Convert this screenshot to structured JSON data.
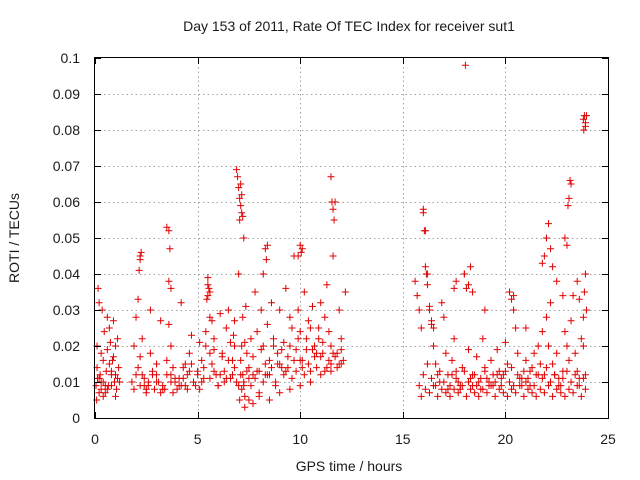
{
  "chart_data": {
    "type": "scatter",
    "title": "Day 153 of 2011, Rate Of TEC Index for receiver sut1",
    "xlabel": "GPS time / hours",
    "ylabel": "ROTI / TECUs",
    "xlim": [
      0,
      25
    ],
    "ylim": [
      0,
      0.1
    ],
    "xticks": [
      0,
      5,
      10,
      15,
      20,
      25
    ],
    "yticks": [
      0,
      0.01,
      0.02,
      0.03,
      0.04,
      0.05,
      0.06,
      0.07,
      0.08,
      0.09,
      0.1
    ],
    "xtick_labels": [
      "0",
      "5",
      "10",
      "15",
      "20",
      "25"
    ],
    "ytick_labels": [
      "0",
      "0.01",
      "0.02",
      "0.03",
      "0.04",
      "0.05",
      "0.06",
      "0.07",
      "0.08",
      "0.09",
      "0.1"
    ],
    "grid": true,
    "marker": "plus",
    "color": "#e00000",
    "series": [
      {
        "x": [
          0.05,
          0.1,
          0.15,
          0.2,
          0.25,
          0.3,
          0.35,
          0.4,
          0.5,
          0.6,
          0.7,
          0.8,
          0.9,
          1.0,
          1.1,
          1.2,
          0.08,
          0.12,
          0.3,
          0.45,
          0.55,
          0.65,
          0.75,
          0.85,
          0.95,
          1.05,
          1.15,
          0.2,
          0.4,
          0.6,
          0.8,
          1.0,
          0.1,
          0.3,
          0.5,
          0.7,
          0.9,
          0.2,
          0.4,
          0.6,
          0.8,
          1.0,
          1.1,
          1.8,
          1.9,
          2.0,
          2.1,
          2.2,
          2.3,
          2.4,
          2.5,
          2.6,
          2.7,
          2.8,
          2.9,
          3.0,
          3.1,
          3.2,
          3.3,
          3.4,
          3.5,
          3.6,
          3.7,
          3.8,
          3.9,
          4.0,
          4.1,
          4.2,
          4.3,
          4.4,
          4.5,
          4.6,
          4.7,
          4.8,
          4.9,
          5.0,
          5.1,
          5.2,
          5.3,
          5.4,
          5.5,
          5.6,
          5.7,
          5.8,
          5.9,
          6.0,
          6.1,
          6.2,
          6.3,
          6.4,
          6.5,
          6.6,
          6.7,
          6.8,
          6.9,
          2.1,
          2.2,
          2.3,
          2.5,
          2.7,
          3.0,
          3.2,
          3.5,
          3.6,
          3.7,
          3.8,
          4.1,
          4.3,
          4.5,
          4.7,
          5.0,
          5.2,
          5.4,
          5.5,
          5.6,
          5.7,
          5.8,
          6.0,
          6.2,
          6.4,
          6.6,
          6.8,
          1.9,
          2.0,
          2.2,
          2.4,
          2.6,
          2.8,
          3.0,
          3.3,
          3.5,
          3.7,
          3.9,
          4.2,
          4.4,
          4.6,
          4.8,
          5.1,
          5.3,
          5.6,
          5.8,
          6.1,
          6.3,
          6.5,
          6.7,
          2.15,
          2.2,
          2.25,
          3.6,
          3.65,
          3.7,
          5.45,
          5.5,
          5.55,
          5.6,
          6.75,
          6.8,
          7.0,
          7.05,
          7.1,
          7.15,
          7.2,
          7.25,
          7.3,
          7.35,
          7.4,
          7.5,
          7.6,
          7.7,
          7.8,
          7.9,
          8.0,
          8.1,
          8.2,
          8.3,
          8.4,
          8.5,
          8.6,
          8.7,
          8.8,
          8.9,
          9.0,
          9.1,
          9.2,
          9.3,
          9.4,
          9.5,
          9.6,
          9.7,
          9.8,
          9.9,
          10.0,
          10.1,
          10.2,
          10.3,
          10.4,
          10.5,
          10.6,
          10.7,
          10.8,
          10.9,
          11.0,
          11.1,
          11.2,
          11.3,
          11.4,
          11.5,
          11.6,
          11.7,
          11.8,
          11.9,
          12.0,
          12.1,
          12.2,
          7.0,
          7.1,
          7.2,
          7.3,
          7.5,
          7.7,
          7.9,
          8.1,
          8.3,
          8.5,
          8.7,
          8.9,
          9.1,
          9.3,
          9.5,
          9.7,
          9.9,
          10.1,
          10.3,
          10.5,
          10.7,
          10.9,
          11.1,
          11.3,
          11.5,
          11.7,
          11.9,
          7.05,
          7.15,
          7.25,
          7.4,
          7.6,
          7.8,
          8.0,
          8.2,
          8.4,
          8.6,
          8.8,
          9.0,
          9.2,
          9.4,
          9.6,
          9.8,
          10.0,
          10.2,
          10.4,
          10.6,
          10.8,
          11.0,
          11.2,
          11.4,
          11.6,
          11.8,
          12.0,
          6.9,
          6.95,
          7.0,
          7.05,
          7.1,
          7.15,
          7.2,
          7.25,
          8.3,
          8.35,
          8.4,
          10.0,
          10.05,
          10.1,
          11.5,
          11.55,
          11.6,
          11.65,
          7.1,
          7.15,
          8.2,
          9.9,
          7.3,
          7.5,
          7.7,
          8.0,
          8.5,
          9.0,
          9.5,
          10.0,
          10.5,
          11.0,
          11.5,
          12.0,
          15.6,
          15.7,
          15.8,
          15.9,
          16.0,
          16.1,
          16.2,
          16.3,
          16.4,
          16.5,
          16.6,
          16.7,
          16.8,
          16.9,
          17.0,
          17.1,
          17.2,
          17.3,
          17.4,
          17.5,
          17.6,
          17.7,
          17.8,
          17.9,
          18.0,
          18.1,
          18.2,
          18.3,
          18.4,
          18.5,
          18.6,
          18.7,
          18.8,
          18.9,
          19.0,
          19.1,
          19.2,
          19.3,
          19.4,
          19.5,
          19.6,
          19.7,
          19.8,
          19.9,
          20.0,
          20.1,
          20.2,
          20.3,
          20.4,
          20.5,
          20.6,
          20.7,
          20.8,
          20.9,
          21.0,
          21.1,
          21.2,
          21.3,
          21.4,
          21.5,
          21.6,
          21.7,
          21.8,
          21.9,
          22.0,
          22.1,
          22.2,
          22.3,
          22.4,
          22.5,
          22.6,
          22.7,
          22.8,
          22.9,
          23.0,
          23.1,
          23.2,
          23.3,
          23.4,
          23.5,
          23.6,
          23.7,
          23.8,
          23.9,
          15.8,
          16.0,
          16.2,
          16.4,
          16.6,
          16.8,
          17.0,
          17.2,
          17.4,
          17.6,
          17.8,
          18.0,
          18.2,
          18.4,
          18.6,
          18.8,
          19.0,
          19.2,
          19.4,
          19.6,
          19.8,
          20.0,
          20.2,
          20.4,
          20.6,
          20.8,
          21.0,
          21.2,
          21.4,
          21.6,
          21.8,
          22.0,
          22.2,
          22.4,
          22.6,
          22.8,
          23.0,
          23.2,
          23.4,
          23.6,
          23.8,
          15.9,
          16.1,
          16.3,
          16.5,
          16.7,
          16.9,
          17.1,
          17.3,
          17.5,
          17.7,
          17.9,
          18.1,
          18.3,
          18.5,
          18.7,
          18.9,
          19.1,
          19.3,
          19.5,
          19.7,
          19.9,
          20.1,
          20.3,
          20.5,
          20.7,
          20.9,
          21.1,
          21.3,
          21.5,
          21.7,
          21.9,
          22.1,
          22.3,
          22.5,
          22.7,
          22.9,
          23.1,
          23.3,
          23.5,
          23.7,
          23.9,
          16.0,
          16.05,
          16.1,
          16.15,
          16.2,
          16.3,
          16.4,
          16.5,
          17.5,
          17.6,
          18.0,
          18.2,
          18.3,
          18.4,
          19.0,
          20.2,
          20.3,
          20.4,
          21.0,
          21.8,
          21.9,
          22.0,
          22.1,
          22.2,
          22.3,
          22.5,
          22.8,
          22.9,
          23.0,
          23.05,
          23.1,
          23.15,
          23.2,
          23.5,
          23.6,
          23.8,
          23.85,
          23.9,
          23.95,
          18.05,
          23.8,
          23.85,
          23.9,
          23.95,
          23.9,
          23.82
        ],
        "y": [
          0.009,
          0.02,
          0.036,
          0.032,
          0.012,
          0.008,
          0.03,
          0.01,
          0.007,
          0.028,
          0.015,
          0.009,
          0.027,
          0.012,
          0.022,
          0.01,
          0.005,
          0.011,
          0.018,
          0.024,
          0.013,
          0.009,
          0.021,
          0.016,
          0.01,
          0.008,
          0.014,
          0.007,
          0.006,
          0.019,
          0.012,
          0.006,
          0.014,
          0.01,
          0.009,
          0.025,
          0.017,
          0.011,
          0.016,
          0.008,
          0.013,
          0.02,
          0.011,
          0.01,
          0.02,
          0.028,
          0.033,
          0.045,
          0.012,
          0.009,
          0.007,
          0.01,
          0.03,
          0.012,
          0.008,
          0.015,
          0.01,
          0.027,
          0.009,
          0.008,
          0.053,
          0.038,
          0.012,
          0.007,
          0.01,
          0.008,
          0.011,
          0.032,
          0.014,
          0.009,
          0.012,
          0.018,
          0.023,
          0.01,
          0.009,
          0.013,
          0.021,
          0.016,
          0.011,
          0.024,
          0.039,
          0.028,
          0.015,
          0.022,
          0.012,
          0.009,
          0.029,
          0.018,
          0.013,
          0.025,
          0.03,
          0.011,
          0.016,
          0.02,
          0.01,
          0.014,
          0.009,
          0.022,
          0.008,
          0.018,
          0.012,
          0.007,
          0.016,
          0.026,
          0.01,
          0.014,
          0.009,
          0.011,
          0.008,
          0.015,
          0.012,
          0.01,
          0.02,
          0.034,
          0.018,
          0.027,
          0.013,
          0.009,
          0.017,
          0.011,
          0.021,
          0.014,
          0.008,
          0.012,
          0.017,
          0.011,
          0.009,
          0.013,
          0.01,
          0.008,
          0.012,
          0.02,
          0.011,
          0.009,
          0.015,
          0.013,
          0.01,
          0.008,
          0.014,
          0.011,
          0.019,
          0.012,
          0.01,
          0.016,
          0.012,
          0.041,
          0.044,
          0.046,
          0.052,
          0.047,
          0.036,
          0.033,
          0.037,
          0.036,
          0.035,
          0.023,
          0.027,
          0.04,
          0.055,
          0.012,
          0.02,
          0.028,
          0.009,
          0.006,
          0.031,
          0.018,
          0.014,
          0.022,
          0.012,
          0.035,
          0.024,
          0.013,
          0.03,
          0.02,
          0.015,
          0.026,
          0.012,
          0.032,
          0.02,
          0.009,
          0.018,
          0.03,
          0.014,
          0.021,
          0.036,
          0.017,
          0.028,
          0.025,
          0.045,
          0.019,
          0.03,
          0.024,
          0.016,
          0.035,
          0.022,
          0.027,
          0.013,
          0.031,
          0.02,
          0.018,
          0.025,
          0.032,
          0.021,
          0.028,
          0.037,
          0.024,
          0.015,
          0.045,
          0.06,
          0.018,
          0.03,
          0.022,
          0.016,
          0.035,
          0.009,
          0.016,
          0.012,
          0.021,
          0.011,
          0.017,
          0.013,
          0.019,
          0.012,
          0.016,
          0.022,
          0.015,
          0.019,
          0.013,
          0.02,
          0.016,
          0.022,
          0.014,
          0.019,
          0.025,
          0.017,
          0.022,
          0.018,
          0.014,
          0.02,
          0.017,
          0.015,
          0.005,
          0.008,
          0.01,
          0.013,
          0.009,
          0.011,
          0.007,
          0.01,
          0.012,
          0.014,
          0.01,
          0.015,
          0.012,
          0.014,
          0.011,
          0.013,
          0.016,
          0.012,
          0.015,
          0.019,
          0.014,
          0.017,
          0.013,
          0.016,
          0.018,
          0.014,
          0.019,
          0.069,
          0.067,
          0.064,
          0.061,
          0.059,
          0.057,
          0.056,
          0.05,
          0.047,
          0.044,
          0.048,
          0.048,
          0.046,
          0.047,
          0.067,
          0.06,
          0.058,
          0.055,
          0.065,
          0.062,
          0.04,
          0.045,
          0.003,
          0.005,
          0.004,
          0.006,
          0.005,
          0.007,
          0.008,
          0.009,
          0.01,
          0.012,
          0.013,
          0.015,
          0.038,
          0.034,
          0.03,
          0.025,
          0.057,
          0.052,
          0.04,
          0.031,
          0.026,
          0.02,
          0.015,
          0.012,
          0.01,
          0.032,
          0.028,
          0.018,
          0.012,
          0.009,
          0.016,
          0.022,
          0.013,
          0.01,
          0.008,
          0.014,
          0.04,
          0.036,
          0.019,
          0.011,
          0.009,
          0.012,
          0.017,
          0.01,
          0.008,
          0.022,
          0.014,
          0.011,
          0.009,
          0.016,
          0.012,
          0.01,
          0.019,
          0.013,
          0.009,
          0.012,
          0.021,
          0.015,
          0.01,
          0.014,
          0.034,
          0.025,
          0.018,
          0.011,
          0.009,
          0.013,
          0.016,
          0.011,
          0.009,
          0.014,
          0.018,
          0.012,
          0.02,
          0.015,
          0.024,
          0.012,
          0.028,
          0.02,
          0.032,
          0.015,
          0.012,
          0.018,
          0.011,
          0.009,
          0.013,
          0.024,
          0.02,
          0.016,
          0.027,
          0.034,
          0.018,
          0.013,
          0.011,
          0.022,
          0.02,
          0.012,
          0.009,
          0.012,
          0.015,
          0.011,
          0.009,
          0.013,
          0.01,
          0.008,
          0.012,
          0.011,
          0.009,
          0.013,
          0.01,
          0.012,
          0.009,
          0.011,
          0.013,
          0.01,
          0.009,
          0.012,
          0.011,
          0.013,
          0.01,
          0.009,
          0.012,
          0.011,
          0.01,
          0.013,
          0.009,
          0.012,
          0.011,
          0.014,
          0.01,
          0.012,
          0.009,
          0.011,
          0.013,
          0.01,
          0.012,
          0.009,
          0.011,
          0.006,
          0.008,
          0.007,
          0.009,
          0.006,
          0.008,
          0.007,
          0.006,
          0.008,
          0.007,
          0.009,
          0.006,
          0.008,
          0.007,
          0.006,
          0.008,
          0.007,
          0.009,
          0.006,
          0.008,
          0.007,
          0.006,
          0.008,
          0.007,
          0.009,
          0.006,
          0.008,
          0.007,
          0.006,
          0.008,
          0.007,
          0.009,
          0.006,
          0.008,
          0.007,
          0.006,
          0.008,
          0.007,
          0.009,
          0.006,
          0.008,
          0.058,
          0.052,
          0.042,
          0.04,
          0.037,
          0.03,
          0.027,
          0.025,
          0.036,
          0.038,
          0.04,
          0.037,
          0.042,
          0.035,
          0.03,
          0.035,
          0.033,
          0.03,
          0.025,
          0.043,
          0.045,
          0.05,
          0.054,
          0.047,
          0.042,
          0.038,
          0.034,
          0.05,
          0.048,
          0.059,
          0.061,
          0.066,
          0.065,
          0.038,
          0.033,
          0.028,
          0.035,
          0.04,
          0.03,
          0.098,
          0.083,
          0.084,
          0.082,
          0.084,
          0.081,
          0.08
        ]
      }
    ]
  }
}
